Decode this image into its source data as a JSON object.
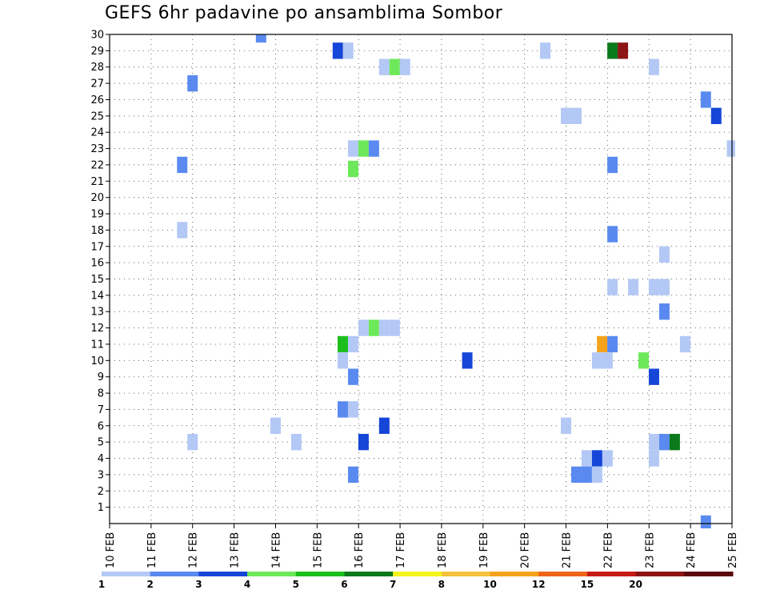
{
  "chart_data": {
    "type": "heatmap",
    "title": "GEFS 6hr padavine po ansamblima Sombor",
    "x_tick_labels": [
      "10 FEB",
      "11 FEB",
      "12 FEB",
      "13 FEB",
      "14 FEB",
      "15 FEB",
      "16 FEB",
      "17 FEB",
      "18 FEB",
      "19 FEB",
      "20 FEB",
      "21 FEB",
      "22 FEB",
      "23 FEB",
      "24 FEB",
      "25 FEB"
    ],
    "xlim": [
      0,
      15
    ],
    "y_tick_labels": [
      "1",
      "2",
      "3",
      "4",
      "5",
      "6",
      "7",
      "8",
      "9",
      "10",
      "11",
      "12",
      "13",
      "14",
      "15",
      "16",
      "17",
      "18",
      "19",
      "20",
      "21",
      "22",
      "23",
      "24",
      "25",
      "26",
      "27",
      "28",
      "29",
      "30"
    ],
    "ylim": [
      0,
      30
    ],
    "grid": true,
    "colorbar": {
      "position": "bottom",
      "labels": [
        "1",
        "2",
        "3",
        "4",
        "5",
        "6",
        "7",
        "8",
        "10",
        "12",
        "15",
        "20"
      ],
      "colors": [
        "#b3c8f5",
        "#5a8af0",
        "#1646d8",
        "#6de85a",
        "#1cbf1c",
        "#0a7a1a",
        "#f5f51a",
        "#f5c23c",
        "#f5a31a",
        "#f0641a",
        "#c81a14",
        "#8c1414",
        "#5a0a0a"
      ]
    },
    "cells": [
      {
        "d": 3.65,
        "m": 30,
        "c": 2
      },
      {
        "d": 5.5,
        "m": 29,
        "c": 3
      },
      {
        "d": 5.75,
        "m": 29,
        "c": 1
      },
      {
        "d": 10.5,
        "m": 29,
        "c": 1
      },
      {
        "d": 12.12,
        "m": 29,
        "c": 6
      },
      {
        "d": 12.37,
        "m": 29,
        "c": 12
      },
      {
        "d": 6.62,
        "m": 28,
        "c": 1
      },
      {
        "d": 6.87,
        "m": 28,
        "c": 4
      },
      {
        "d": 7.12,
        "m": 28,
        "c": 1
      },
      {
        "d": 13.12,
        "m": 28,
        "c": 1
      },
      {
        "d": 2,
        "m": 27,
        "c": 2
      },
      {
        "d": 14.37,
        "m": 26,
        "c": 2
      },
      {
        "d": 11,
        "m": 25,
        "c": 1
      },
      {
        "d": 11.25,
        "m": 25,
        "c": 1
      },
      {
        "d": 14.62,
        "m": 25,
        "c": 3
      },
      {
        "d": 5.87,
        "m": 23,
        "c": 1
      },
      {
        "d": 6.12,
        "m": 23,
        "c": 4
      },
      {
        "d": 6.37,
        "m": 23,
        "c": 2
      },
      {
        "d": 15,
        "m": 23,
        "c": 1
      },
      {
        "d": 1.75,
        "m": 22,
        "c": 2
      },
      {
        "d": 12.12,
        "m": 22,
        "c": 2
      },
      {
        "d": 5.87,
        "m": 21.75,
        "c": 4
      },
      {
        "d": 1.75,
        "m": 18,
        "c": 1
      },
      {
        "d": 12.12,
        "m": 17.75,
        "c": 2
      },
      {
        "d": 13.37,
        "m": 16.5,
        "c": 1
      },
      {
        "d": 12.12,
        "m": 14.5,
        "c": 1
      },
      {
        "d": 12.62,
        "m": 14.5,
        "c": 1
      },
      {
        "d": 13.12,
        "m": 14.5,
        "c": 1
      },
      {
        "d": 13.37,
        "m": 14.5,
        "c": 1
      },
      {
        "d": 13.37,
        "m": 13,
        "c": 2
      },
      {
        "d": 6.12,
        "m": 12,
        "c": 1
      },
      {
        "d": 6.37,
        "m": 12,
        "c": 4
      },
      {
        "d": 6.62,
        "m": 12,
        "c": 1
      },
      {
        "d": 6.87,
        "m": 12,
        "c": 1
      },
      {
        "d": 5.62,
        "m": 11,
        "c": 5
      },
      {
        "d": 5.87,
        "m": 11,
        "c": 1
      },
      {
        "d": 11.87,
        "m": 11,
        "c": 9
      },
      {
        "d": 12.12,
        "m": 11,
        "c": 2
      },
      {
        "d": 13.87,
        "m": 11,
        "c": 1
      },
      {
        "d": 5.62,
        "m": 10,
        "c": 1
      },
      {
        "d": 8.62,
        "m": 10,
        "c": 3
      },
      {
        "d": 11.75,
        "m": 10,
        "c": 1
      },
      {
        "d": 12,
        "m": 10,
        "c": 1
      },
      {
        "d": 12.87,
        "m": 10,
        "c": 4
      },
      {
        "d": 5.87,
        "m": 9,
        "c": 2
      },
      {
        "d": 13.12,
        "m": 9,
        "c": 3
      },
      {
        "d": 5.62,
        "m": 7,
        "c": 2
      },
      {
        "d": 5.87,
        "m": 7,
        "c": 1
      },
      {
        "d": 4,
        "m": 6,
        "c": 1
      },
      {
        "d": 6.62,
        "m": 6,
        "c": 3
      },
      {
        "d": 11,
        "m": 6,
        "c": 1
      },
      {
        "d": 2,
        "m": 5,
        "c": 1
      },
      {
        "d": 4.5,
        "m": 5,
        "c": 1
      },
      {
        "d": 6.12,
        "m": 5,
        "c": 3
      },
      {
        "d": 13.12,
        "m": 5,
        "c": 1
      },
      {
        "d": 13.37,
        "m": 5,
        "c": 2
      },
      {
        "d": 13.62,
        "m": 5,
        "c": 6
      },
      {
        "d": 11.5,
        "m": 4,
        "c": 1
      },
      {
        "d": 11.75,
        "m": 4,
        "c": 3
      },
      {
        "d": 12,
        "m": 4,
        "c": 1
      },
      {
        "d": 13.12,
        "m": 4,
        "c": 1
      },
      {
        "d": 5.87,
        "m": 3,
        "c": 2
      },
      {
        "d": 11.25,
        "m": 3,
        "c": 2
      },
      {
        "d": 11.5,
        "m": 3,
        "c": 2
      },
      {
        "d": 11.75,
        "m": 3,
        "c": 1
      },
      {
        "d": 14.37,
        "m": 0,
        "c": 2
      }
    ]
  }
}
